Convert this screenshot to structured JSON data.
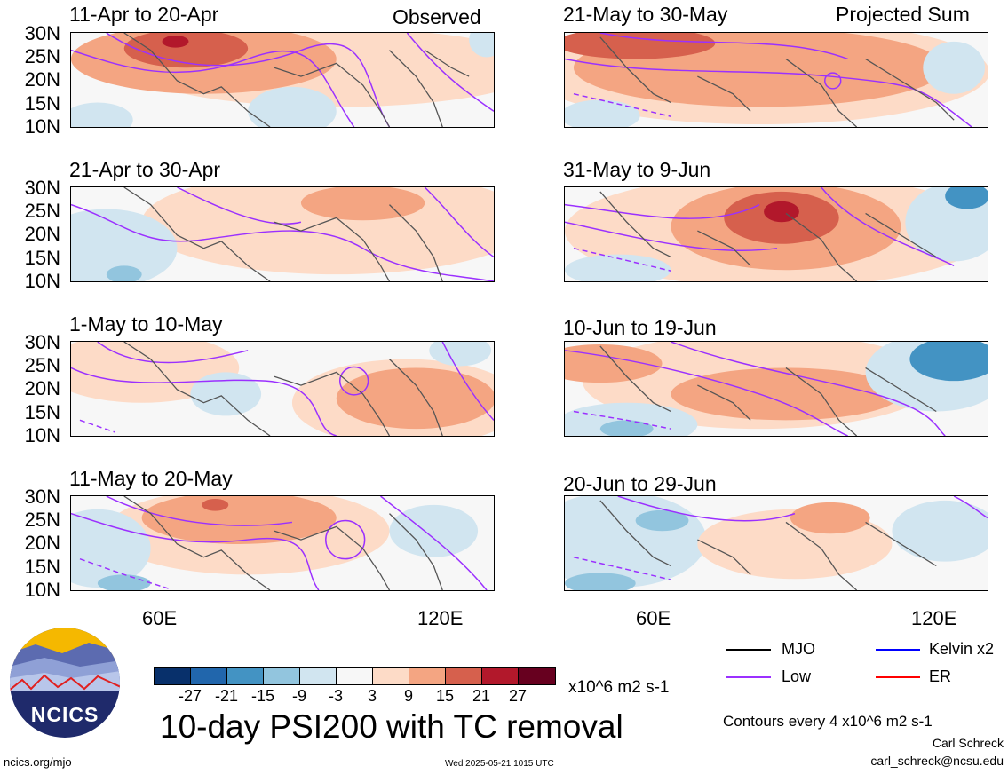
{
  "panels": [
    {
      "title": "11-Apr to 20-Apr",
      "tag": "Observed"
    },
    {
      "title": "21-May to 30-May",
      "tag": "Projected Sum"
    },
    {
      "title": "21-Apr to 30-Apr",
      "tag": ""
    },
    {
      "title": "31-May to 9-Jun",
      "tag": ""
    },
    {
      "title": "1-May to 10-May",
      "tag": ""
    },
    {
      "title": "10-Jun to 19-Jun",
      "tag": ""
    },
    {
      "title": "11-May to 20-May",
      "tag": ""
    },
    {
      "title": "20-Jun to 29-Jun",
      "tag": ""
    }
  ],
  "lat_labels": [
    "30N",
    "25N",
    "20N",
    "15N",
    "10N"
  ],
  "lon_labels": [
    "60E",
    "120E"
  ],
  "legend": {
    "mjo": "MJO",
    "kelvin": "Kelvin x2",
    "low": "Low",
    "er": "ER",
    "colors": {
      "mjo": "#000000",
      "kelvin": "#0000ff",
      "low": "#9b30ff",
      "er": "#ff0000"
    }
  },
  "colorbar": {
    "ticks": [
      "-27",
      "-21",
      "-15",
      "-9",
      "-3",
      "3",
      "9",
      "15",
      "21",
      "27"
    ],
    "units": "x10^6 m2 s-1",
    "colors": [
      "#08306b",
      "#2166ac",
      "#4393c3",
      "#92c5de",
      "#d1e5f0",
      "#f7f7f7",
      "#fddbc7",
      "#f4a582",
      "#d6604d",
      "#b2182b",
      "#67001f"
    ]
  },
  "main_title": "10-day PSI200 with TC removal",
  "contour_note": "Contours every 4 x10^6 m2 s-1",
  "author": "Carl Schreck",
  "email": "carl_schreck@ncsu.edu",
  "site": "ncics.org/mjo",
  "timestamp": "Wed 2025-05-21 1015 UTC",
  "logo_text": "NCICS"
}
